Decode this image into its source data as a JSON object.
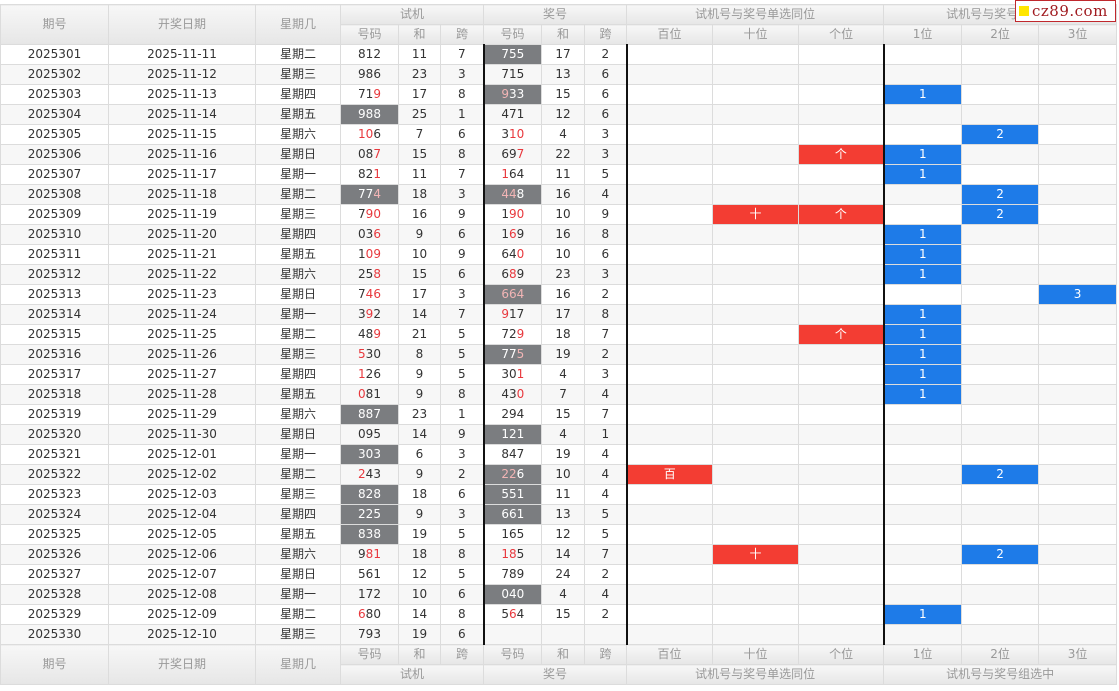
{
  "header": {
    "issue": "期号",
    "date": "开奖日期",
    "weekday": "星期几",
    "trial_group": "试机",
    "award_group": "奖号",
    "same_pos_group": "试机号与奖号单选同位",
    "group_sel_group": "试机号与奖号组选中",
    "num": "号码",
    "sum": "和",
    "span": "跨",
    "pos": [
      "百位",
      "十位",
      "个位"
    ],
    "grp": [
      "1位",
      "2位",
      "3位"
    ]
  },
  "logo": {
    "text": "cz89.com"
  },
  "colors": {
    "match_gray": "#7b7d80",
    "red_mark": "#f33d33",
    "blue_mark": "#1e7be8",
    "red_digit": "#e8383d"
  },
  "rows": [
    {
      "issue": "2025301",
      "date": "2025-11-11",
      "weekday": "星期二",
      "t": "812",
      "tr": "000",
      "tg": false,
      "ts": "11",
      "tk": "7",
      "a": "755",
      "ar": "000",
      "ag": true,
      "as": "17",
      "ak": "2",
      "pos": [
        "",
        "",
        ""
      ],
      "grp": [
        "",
        "",
        ""
      ]
    },
    {
      "issue": "2025302",
      "date": "2025-11-12",
      "weekday": "星期三",
      "t": "986",
      "tr": "000",
      "tg": false,
      "ts": "23",
      "tk": "3",
      "a": "715",
      "ar": "000",
      "ag": false,
      "as": "13",
      "ak": "6",
      "pos": [
        "",
        "",
        ""
      ],
      "grp": [
        "",
        "",
        ""
      ]
    },
    {
      "issue": "2025303",
      "date": "2025-11-13",
      "weekday": "星期四",
      "t": "719",
      "tr": "001",
      "tg": false,
      "ts": "17",
      "tk": "8",
      "a": "933",
      "ar": "100",
      "ag": true,
      "as": "15",
      "ak": "6",
      "pos": [
        "",
        "",
        ""
      ],
      "grp": [
        "1",
        "",
        ""
      ]
    },
    {
      "issue": "2025304",
      "date": "2025-11-14",
      "weekday": "星期五",
      "t": "988",
      "tr": "000",
      "tg": true,
      "ts": "25",
      "tk": "1",
      "a": "471",
      "ar": "000",
      "ag": false,
      "as": "12",
      "ak": "6",
      "pos": [
        "",
        "",
        ""
      ],
      "grp": [
        "",
        "",
        ""
      ]
    },
    {
      "issue": "2025305",
      "date": "2025-11-15",
      "weekday": "星期六",
      "t": "106",
      "tr": "110",
      "tg": false,
      "ts": "7",
      "tk": "6",
      "a": "310",
      "ar": "011",
      "ag": false,
      "as": "4",
      "ak": "3",
      "pos": [
        "",
        "",
        ""
      ],
      "grp": [
        "",
        "2",
        ""
      ]
    },
    {
      "issue": "2025306",
      "date": "2025-11-16",
      "weekday": "星期日",
      "t": "087",
      "tr": "001",
      "tg": false,
      "ts": "15",
      "tk": "8",
      "a": "697",
      "ar": "001",
      "ag": false,
      "as": "22",
      "ak": "3",
      "pos": [
        "",
        "",
        "个"
      ],
      "grp": [
        "1",
        "",
        ""
      ]
    },
    {
      "issue": "2025307",
      "date": "2025-11-17",
      "weekday": "星期一",
      "t": "821",
      "tr": "001",
      "tg": false,
      "ts": "11",
      "tk": "7",
      "a": "164",
      "ar": "100",
      "ag": false,
      "as": "11",
      "ak": "5",
      "pos": [
        "",
        "",
        ""
      ],
      "grp": [
        "1",
        "",
        ""
      ]
    },
    {
      "issue": "2025308",
      "date": "2025-11-18",
      "weekday": "星期二",
      "t": "774",
      "tr": "001",
      "tg": true,
      "ts": "18",
      "tk": "3",
      "a": "448",
      "ar": "110",
      "ag": true,
      "as": "16",
      "ak": "4",
      "pos": [
        "",
        "",
        ""
      ],
      "grp": [
        "",
        "2",
        ""
      ]
    },
    {
      "issue": "2025309",
      "date": "2025-11-19",
      "weekday": "星期三",
      "t": "790",
      "tr": "011",
      "tg": false,
      "ts": "16",
      "tk": "9",
      "a": "190",
      "ar": "011",
      "ag": false,
      "as": "10",
      "ak": "9",
      "pos": [
        "",
        "十",
        "个"
      ],
      "grp": [
        "",
        "2",
        ""
      ]
    },
    {
      "issue": "2025310",
      "date": "2025-11-20",
      "weekday": "星期四",
      "t": "036",
      "tr": "001",
      "tg": false,
      "ts": "9",
      "tk": "6",
      "a": "169",
      "ar": "010",
      "ag": false,
      "as": "16",
      "ak": "8",
      "pos": [
        "",
        "",
        ""
      ],
      "grp": [
        "1",
        "",
        ""
      ]
    },
    {
      "issue": "2025311",
      "date": "2025-11-21",
      "weekday": "星期五",
      "t": "109",
      "tr": "011",
      "tg": false,
      "ts": "10",
      "tk": "9",
      "a": "640",
      "ar": "001",
      "ag": false,
      "as": "10",
      "ak": "6",
      "pos": [
        "",
        "",
        ""
      ],
      "grp": [
        "1",
        "",
        ""
      ]
    },
    {
      "issue": "2025312",
      "date": "2025-11-22",
      "weekday": "星期六",
      "t": "258",
      "tr": "001",
      "tg": false,
      "ts": "15",
      "tk": "6",
      "a": "689",
      "ar": "010",
      "ag": false,
      "as": "23",
      "ak": "3",
      "pos": [
        "",
        "",
        ""
      ],
      "grp": [
        "1",
        "",
        ""
      ]
    },
    {
      "issue": "2025313",
      "date": "2025-11-23",
      "weekday": "星期日",
      "t": "746",
      "tr": "011",
      "tg": false,
      "ts": "17",
      "tk": "3",
      "a": "664",
      "ar": "111",
      "ag": true,
      "as": "16",
      "ak": "2",
      "pos": [
        "",
        "",
        ""
      ],
      "grp": [
        "",
        "",
        "3"
      ]
    },
    {
      "issue": "2025314",
      "date": "2025-11-24",
      "weekday": "星期一",
      "t": "392",
      "tr": "010",
      "tg": false,
      "ts": "14",
      "tk": "7",
      "a": "917",
      "ar": "100",
      "ag": false,
      "as": "17",
      "ak": "8",
      "pos": [
        "",
        "",
        ""
      ],
      "grp": [
        "1",
        "",
        ""
      ]
    },
    {
      "issue": "2025315",
      "date": "2025-11-25",
      "weekday": "星期二",
      "t": "489",
      "tr": "001",
      "tg": false,
      "ts": "21",
      "tk": "5",
      "a": "729",
      "ar": "001",
      "ag": false,
      "as": "18",
      "ak": "7",
      "pos": [
        "",
        "",
        "个"
      ],
      "grp": [
        "1",
        "",
        ""
      ]
    },
    {
      "issue": "2025316",
      "date": "2025-11-26",
      "weekday": "星期三",
      "t": "530",
      "tr": "100",
      "tg": false,
      "ts": "8",
      "tk": "5",
      "a": "775",
      "ar": "001",
      "ag": true,
      "as": "19",
      "ak": "2",
      "pos": [
        "",
        "",
        ""
      ],
      "grp": [
        "1",
        "",
        ""
      ]
    },
    {
      "issue": "2025317",
      "date": "2025-11-27",
      "weekday": "星期四",
      "t": "126",
      "tr": "100",
      "tg": false,
      "ts": "9",
      "tk": "5",
      "a": "301",
      "ar": "001",
      "ag": false,
      "as": "4",
      "ak": "3",
      "pos": [
        "",
        "",
        ""
      ],
      "grp": [
        "1",
        "",
        ""
      ]
    },
    {
      "issue": "2025318",
      "date": "2025-11-28",
      "weekday": "星期五",
      "t": "081",
      "tr": "100",
      "tg": false,
      "ts": "9",
      "tk": "8",
      "a": "430",
      "ar": "001",
      "ag": false,
      "as": "7",
      "ak": "4",
      "pos": [
        "",
        "",
        ""
      ],
      "grp": [
        "1",
        "",
        ""
      ]
    },
    {
      "issue": "2025319",
      "date": "2025-11-29",
      "weekday": "星期六",
      "t": "887",
      "tr": "000",
      "tg": true,
      "ts": "23",
      "tk": "1",
      "a": "294",
      "ar": "000",
      "ag": false,
      "as": "15",
      "ak": "7",
      "pos": [
        "",
        "",
        ""
      ],
      "grp": [
        "",
        "",
        ""
      ]
    },
    {
      "issue": "2025320",
      "date": "2025-11-30",
      "weekday": "星期日",
      "t": "095",
      "tr": "000",
      "tg": false,
      "ts": "14",
      "tk": "9",
      "a": "121",
      "ar": "000",
      "ag": true,
      "as": "4",
      "ak": "1",
      "pos": [
        "",
        "",
        ""
      ],
      "grp": [
        "",
        "",
        ""
      ]
    },
    {
      "issue": "2025321",
      "date": "2025-12-01",
      "weekday": "星期一",
      "t": "303",
      "tr": "000",
      "tg": true,
      "ts": "6",
      "tk": "3",
      "a": "847",
      "ar": "000",
      "ag": false,
      "as": "19",
      "ak": "4",
      "pos": [
        "",
        "",
        ""
      ],
      "grp": [
        "",
        "",
        ""
      ]
    },
    {
      "issue": "2025322",
      "date": "2025-12-02",
      "weekday": "星期二",
      "t": "243",
      "tr": "100",
      "tg": false,
      "ts": "9",
      "tk": "2",
      "a": "226",
      "ar": "110",
      "ag": true,
      "as": "10",
      "ak": "4",
      "pos": [
        "百",
        "",
        ""
      ],
      "grp": [
        "",
        "2",
        ""
      ]
    },
    {
      "issue": "2025323",
      "date": "2025-12-03",
      "weekday": "星期三",
      "t": "828",
      "tr": "000",
      "tg": true,
      "ts": "18",
      "tk": "6",
      "a": "551",
      "ar": "000",
      "ag": true,
      "as": "11",
      "ak": "4",
      "pos": [
        "",
        "",
        ""
      ],
      "grp": [
        "",
        "",
        ""
      ]
    },
    {
      "issue": "2025324",
      "date": "2025-12-04",
      "weekday": "星期四",
      "t": "225",
      "tr": "000",
      "tg": true,
      "ts": "9",
      "tk": "3",
      "a": "661",
      "ar": "000",
      "ag": true,
      "as": "13",
      "ak": "5",
      "pos": [
        "",
        "",
        ""
      ],
      "grp": [
        "",
        "",
        ""
      ]
    },
    {
      "issue": "2025325",
      "date": "2025-12-05",
      "weekday": "星期五",
      "t": "838",
      "tr": "000",
      "tg": true,
      "ts": "19",
      "tk": "5",
      "a": "165",
      "ar": "000",
      "ag": false,
      "as": "12",
      "ak": "5",
      "pos": [
        "",
        "",
        ""
      ],
      "grp": [
        "",
        "",
        ""
      ]
    },
    {
      "issue": "2025326",
      "date": "2025-12-06",
      "weekday": "星期六",
      "t": "981",
      "tr": "011",
      "tg": false,
      "ts": "18",
      "tk": "8",
      "a": "185",
      "ar": "110",
      "ag": false,
      "as": "14",
      "ak": "7",
      "pos": [
        "",
        "十",
        ""
      ],
      "grp": [
        "",
        "2",
        ""
      ]
    },
    {
      "issue": "2025327",
      "date": "2025-12-07",
      "weekday": "星期日",
      "t": "561",
      "tr": "000",
      "tg": false,
      "ts": "12",
      "tk": "5",
      "a": "789",
      "ar": "000",
      "ag": false,
      "as": "24",
      "ak": "2",
      "pos": [
        "",
        "",
        ""
      ],
      "grp": [
        "",
        "",
        ""
      ]
    },
    {
      "issue": "2025328",
      "date": "2025-12-08",
      "weekday": "星期一",
      "t": "172",
      "tr": "000",
      "tg": false,
      "ts": "10",
      "tk": "6",
      "a": "040",
      "ar": "000",
      "ag": true,
      "as": "4",
      "ak": "4",
      "pos": [
        "",
        "",
        ""
      ],
      "grp": [
        "",
        "",
        ""
      ]
    },
    {
      "issue": "2025329",
      "date": "2025-12-09",
      "weekday": "星期二",
      "t": "680",
      "tr": "100",
      "tg": false,
      "ts": "14",
      "tk": "8",
      "a": "564",
      "ar": "010",
      "ag": false,
      "as": "15",
      "ak": "2",
      "pos": [
        "",
        "",
        ""
      ],
      "grp": [
        "1",
        "",
        ""
      ]
    },
    {
      "issue": "2025330",
      "date": "2025-12-10",
      "weekday": "星期三",
      "t": "793",
      "tr": "000",
      "tg": false,
      "ts": "19",
      "tk": "6",
      "a": "",
      "ar": "000",
      "ag": false,
      "as": "",
      "ak": "",
      "pos": [
        "",
        "",
        ""
      ],
      "grp": [
        "",
        "",
        ""
      ]
    }
  ]
}
